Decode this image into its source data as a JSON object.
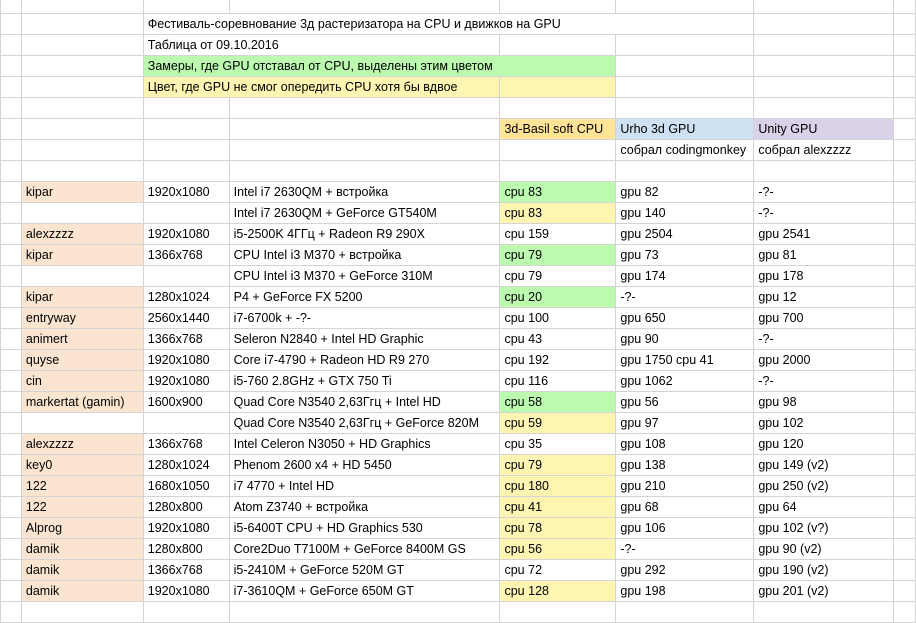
{
  "header": {
    "title": "Фестиваль-соревнование 3д растеризатора на CPU и движков на GPU",
    "date_line": "Таблица от 09.10.2016",
    "legend_green": "Замеры, где GPU отставал от CPU, выделены этим цветом",
    "legend_yellow": "Цвет, где GPU не смог опередить CPU хотя бы вдвое"
  },
  "columns": {
    "cpu": "3d-Basil soft CPU",
    "urho": "Urho 3d GPU",
    "unity": "Unity GPU",
    "urho_author": "собрал codingmonkey",
    "unity_author": "собрал alexzzzz"
  },
  "colors": {
    "green": "#bcfab0",
    "yellow": "#fff5b3",
    "name": "#fbe5d0",
    "cpu_header": "#ffe397",
    "urho_header": "#cfe2f3",
    "unity_header": "#d9d2e9"
  },
  "rows": [
    {
      "name": "kipar",
      "res": "1920x1080",
      "config": "Intel i7 2630QM + встройка",
      "cpu": "cpu 83",
      "hl": "green",
      "urho": "gpu 82",
      "unity": "-?-"
    },
    {
      "name": "",
      "res": "",
      "config": "Intel i7 2630QM + GeForce GT540M",
      "cpu": "cpu 83",
      "hl": "yellow",
      "urho": "gpu 140",
      "unity": "-?-"
    },
    {
      "name": "alexzzzz",
      "res": "1920x1080",
      "config": "i5-2500K 4ГГц + Radeon R9 290X",
      "cpu": "cpu 159",
      "hl": "",
      "urho": "gpu 2504",
      "unity": "gpu 2541"
    },
    {
      "name": "kipar",
      "res": "1366x768",
      "config": "CPU Intel i3 M370 + встройка",
      "cpu": "cpu 79",
      "hl": "green",
      "urho": "gpu 73",
      "unity": "gpu 81"
    },
    {
      "name": "",
      "res": "",
      "config": "CPU Intel i3 M370 + GeForce 310M",
      "cpu": "cpu 79",
      "hl": "",
      "urho": "gpu 174",
      "unity": "gpu 178"
    },
    {
      "name": "kipar",
      "res": "1280x1024",
      "config": "P4 + GeForce FX 5200",
      "cpu": "cpu 20",
      "hl": "green",
      "urho": "-?-",
      "unity": "gpu 12"
    },
    {
      "name": "entryway",
      "res": "2560x1440",
      "config": "i7-6700k + -?-",
      "cpu": "cpu 100",
      "hl": "",
      "urho": "gpu 650",
      "unity": "gpu 700"
    },
    {
      "name": "animert",
      "res": "1366x768",
      "config": "Seleron N2840 + Intel HD Graphic",
      "cpu": "cpu 43",
      "hl": "",
      "urho": "gpu 90",
      "unity": "-?-"
    },
    {
      "name": "quyse",
      "res": "1920x1080",
      "config": "Core i7-4790 + Radeon HD R9 270",
      "cpu": "cpu 192",
      "hl": "",
      "urho": "gpu 1750 cpu 41",
      "unity": "gpu 2000"
    },
    {
      "name": "cin",
      "res": "1920x1080",
      "config": "i5-760 2.8GHz + GTX 750 Ti",
      "cpu": "cpu 116",
      "hl": "",
      "urho": "gpu 1062",
      "unity": "-?-"
    },
    {
      "name": "markertat (gamin)",
      "res": "1600x900",
      "config": "Quad Core N3540 2,63Ггц + Intel HD",
      "cpu": "cpu 58",
      "hl": "green",
      "urho": "gpu 56",
      "unity": "gpu 98"
    },
    {
      "name": "",
      "res": "",
      "config": "Quad Core N3540 2,63Ггц + GeForce 820M",
      "cpu": "cpu 59",
      "hl": "yellow",
      "urho": "gpu 97",
      "unity": "gpu 102"
    },
    {
      "name": "alexzzzz",
      "res": "1366x768",
      "config": "Intel Celeron N3050 + HD Graphics",
      "cpu": "cpu 35",
      "hl": "",
      "urho": "gpu 108",
      "unity": "gpu 120"
    },
    {
      "name": "key0",
      "res": "1280x1024",
      "config": "Phenom 2600 x4 + HD 5450",
      "cpu": "cpu 79",
      "hl": "yellow",
      "urho": "gpu 138",
      "unity": "gpu 149 (v2)"
    },
    {
      "name": "122",
      "res": "1680x1050",
      "config": "i7 4770 + Intel HD",
      "cpu": "cpu 180",
      "hl": "yellow",
      "urho": "gpu 210",
      "unity": "gpu 250 (v2)"
    },
    {
      "name": "122",
      "res": "1280x800",
      "config": "Atom Z3740 + встройка",
      "cpu": "cpu 41",
      "hl": "yellow",
      "urho": "gpu 68",
      "unity": "gpu 64"
    },
    {
      "name": "Alprog",
      "res": "1920x1080",
      "config": "i5-6400T CPU + HD Graphics 530",
      "cpu": "cpu 78",
      "hl": "yellow",
      "urho": "gpu 106",
      "unity": "gpu 102 (v?)"
    },
    {
      "name": "damik",
      "res": "1280x800",
      "config": "Core2Duo T7100M + GeForce 8400M GS",
      "cpu": "cpu 56",
      "hl": "yellow",
      "urho": "-?-",
      "unity": "gpu 90 (v2)"
    },
    {
      "name": "damik",
      "res": "1366x768",
      "config": "i5-2410M + GeForce 520M GT",
      "cpu": "cpu 72",
      "hl": "",
      "urho": "gpu 292",
      "unity": "gpu 190 (v2)"
    },
    {
      "name": "damik",
      "res": "1920x1080",
      "config": "i7-3610QM + GeForce 650M GT",
      "cpu": "cpu 128",
      "hl": "yellow",
      "urho": "gpu 198",
      "unity": "gpu 201 (v2)"
    }
  ]
}
